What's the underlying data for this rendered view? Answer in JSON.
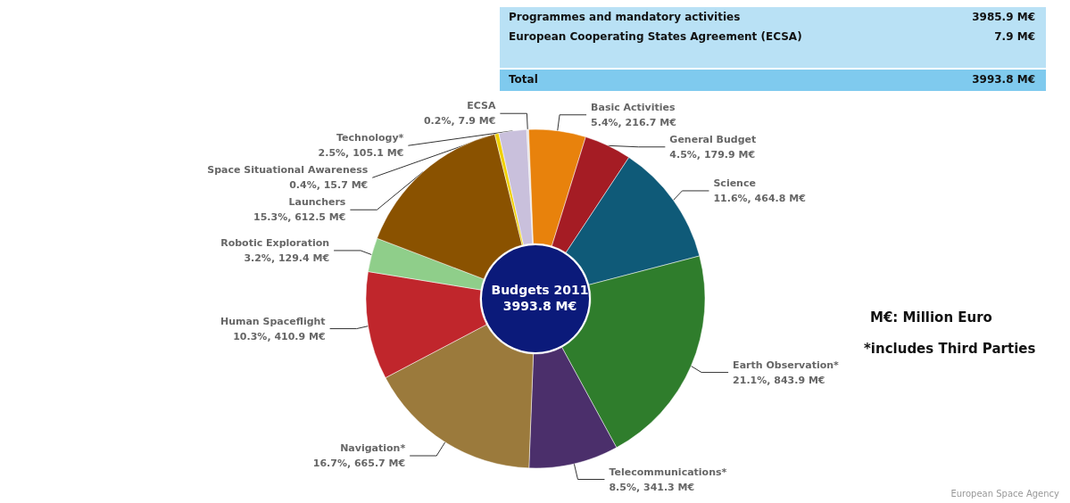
{
  "chart_data": {
    "type": "donut",
    "title": "Budgets 2011",
    "subtitle": "3993.8 M€",
    "categories": [
      "ECSA",
      "Basic Activities",
      "General Budget",
      "Science",
      "Earth Observation*",
      "Telecommunications*",
      "Navigation*",
      "Human Spaceflight",
      "Robotic Exploration",
      "Launchers",
      "Space Situational Awareness",
      "Technology*"
    ],
    "values": [
      7.9,
      216.7,
      179.9,
      464.8,
      843.9,
      341.3,
      665.7,
      410.9,
      129.4,
      612.5,
      15.7,
      105.1
    ],
    "value_labels": [
      "0.2%, 7.9 M€",
      "5.4%, 216.7 M€",
      "4.5%, 179.9 M€",
      "11.6%, 464.8 M€",
      "21.1%, 843.9 M€",
      "8.5%, 341.3 M€",
      "16.7%, 665.7 M€",
      "10.3%, 410.9 M€",
      "3.2%, 129.4 M€",
      "15.3%, 612.5 M€",
      "0.4%, 15.7 M€",
      "2.5%, 105.1 M€"
    ],
    "colors": [
      "#e6e6e6",
      "#e8820c",
      "#a51c24",
      "#0f5a78",
      "#2f7d2c",
      "#4b2f6b",
      "#9b7a3c",
      "#c0262c",
      "#8fce8a",
      "#8a5200",
      "#f0d000",
      "#c9c0dc"
    ],
    "annotations": [
      "Programmes and mandatory activities",
      "3985.9 M€",
      "European Cooperating States Agreement (ECSA)",
      "7.9 M€",
      "Total",
      "3993.8 M€",
      "M€: Million Euro",
      "*includes Third Parties",
      "European Space Agency"
    ],
    "legend": false
  }
}
